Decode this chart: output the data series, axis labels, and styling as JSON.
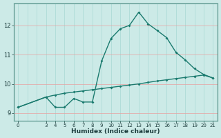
{
  "xlabel": "Humidex (Indice chaleur)",
  "background_color": "#cceae7",
  "line_color": "#1a7a6e",
  "grid_color_h": "#e8a0a0",
  "grid_color_v": "#a8d8d4",
  "xlim": [
    -0.5,
    21.5
  ],
  "ylim": [
    8.75,
    12.75
  ],
  "yticks": [
    9,
    10,
    11,
    12
  ],
  "xticks": [
    0,
    3,
    4,
    5,
    6,
    7,
    8,
    9,
    10,
    11,
    12,
    13,
    14,
    15,
    16,
    17,
    18,
    19,
    20,
    21
  ],
  "line1_x": [
    0,
    3,
    4,
    5,
    6,
    7,
    8,
    9,
    10,
    11,
    12,
    13,
    14,
    15,
    16,
    17,
    18,
    19,
    20,
    21
  ],
  "line1_y": [
    9.2,
    9.55,
    9.2,
    9.2,
    9.5,
    9.38,
    9.38,
    10.78,
    11.55,
    11.88,
    12.0,
    12.45,
    12.05,
    11.82,
    11.58,
    11.08,
    10.82,
    10.52,
    10.32,
    10.2
  ],
  "line2_x": [
    0,
    3,
    4,
    5,
    6,
    7,
    8,
    9,
    10,
    11,
    12,
    13,
    14,
    15,
    16,
    17,
    18,
    19,
    20,
    21
  ],
  "line2_y": [
    9.2,
    9.55,
    9.62,
    9.68,
    9.72,
    9.76,
    9.8,
    9.84,
    9.88,
    9.92,
    9.96,
    10.0,
    10.05,
    10.1,
    10.14,
    10.18,
    10.22,
    10.26,
    10.3,
    10.2
  ]
}
